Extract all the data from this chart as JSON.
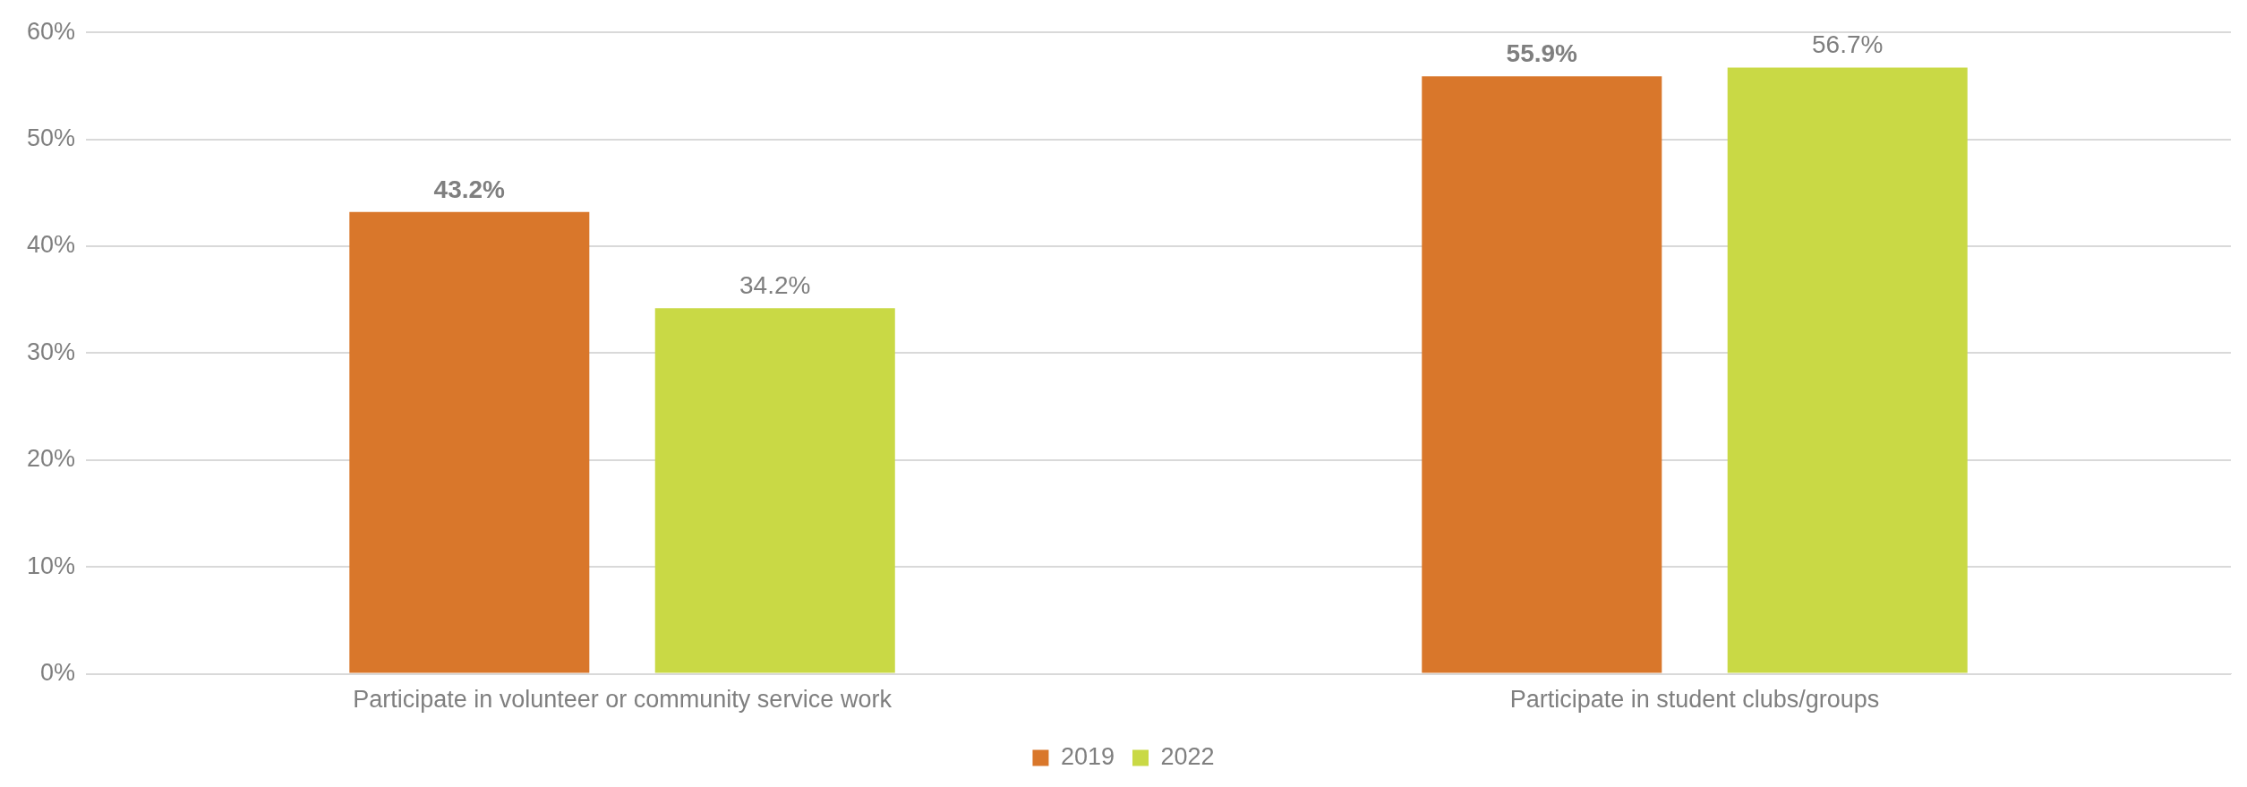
{
  "chart_data": {
    "type": "bar",
    "categories": [
      "Participate in volunteer or community service work",
      "Participate in student clubs/groups"
    ],
    "series": [
      {
        "name": "2019",
        "color": "#d9772b",
        "values": [
          43.2,
          55.9
        ],
        "value_labels": [
          "43.2%",
          "55.9%"
        ]
      },
      {
        "name": "2022",
        "color": "#c9d945",
        "values": [
          34.2,
          56.7
        ],
        "value_labels": [
          "34.2%",
          "56.7%"
        ]
      }
    ],
    "ylim": [
      0,
      60
    ],
    "yticks": [
      {
        "value": 0,
        "label": "0%"
      },
      {
        "value": 10,
        "label": "10%"
      },
      {
        "value": 20,
        "label": "20%"
      },
      {
        "value": 30,
        "label": "30%"
      },
      {
        "value": 40,
        "label": "40%"
      },
      {
        "value": 50,
        "label": "50%"
      },
      {
        "value": 60,
        "label": "60%"
      }
    ],
    "grid": "y",
    "legend": "bottom"
  }
}
